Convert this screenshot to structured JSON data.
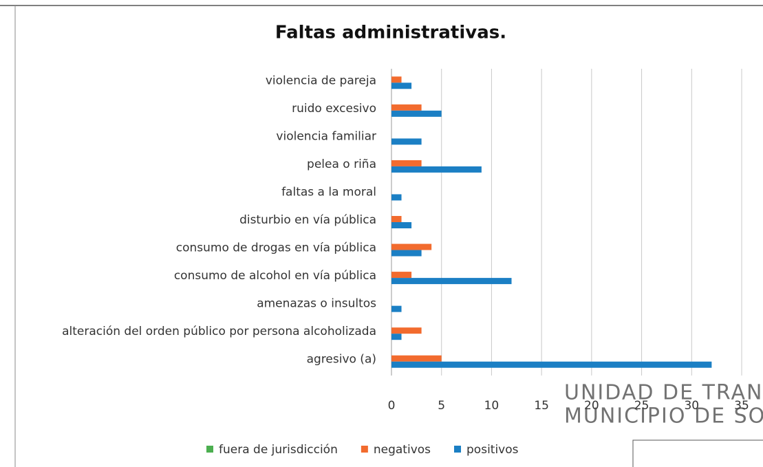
{
  "chart_data": {
    "type": "bar",
    "orientation": "horizontal",
    "title": "Faltas administrativas.",
    "categories": [
      "violencia de pareja",
      "ruido excesivo",
      "violencia familiar",
      "pelea o riña",
      "faltas a la moral",
      "disturbio en vía pública",
      "consumo de drogas en vía pública",
      "consumo de alcohol en vía pública",
      "amenazas o insultos",
      "alteración del orden público por persona alcoholizada",
      "agresivo (a)"
    ],
    "series": [
      {
        "name": "fuera de jurisdicción",
        "color": "#4caf50",
        "values": [
          0,
          0,
          0,
          0,
          0,
          0,
          0,
          0,
          0,
          0,
          0
        ]
      },
      {
        "name": "negativos",
        "color": "#f26b2e",
        "values": [
          1,
          3,
          0,
          3,
          0,
          1,
          4,
          2,
          0,
          3,
          5
        ]
      },
      {
        "name": "positivos",
        "color": "#1b7fc4",
        "values": [
          2,
          5,
          3,
          9,
          1,
          2,
          3,
          12,
          1,
          1,
          32
        ]
      }
    ],
    "xlim": [
      0,
      35
    ],
    "xticks": [
      0,
      5,
      10,
      15,
      20,
      25,
      30,
      35
    ],
    "grid": true,
    "legend": "bottom",
    "annotations": [
      "UNIDAD DE TRANSP",
      "MUNICIPIO DE SOM"
    ]
  }
}
